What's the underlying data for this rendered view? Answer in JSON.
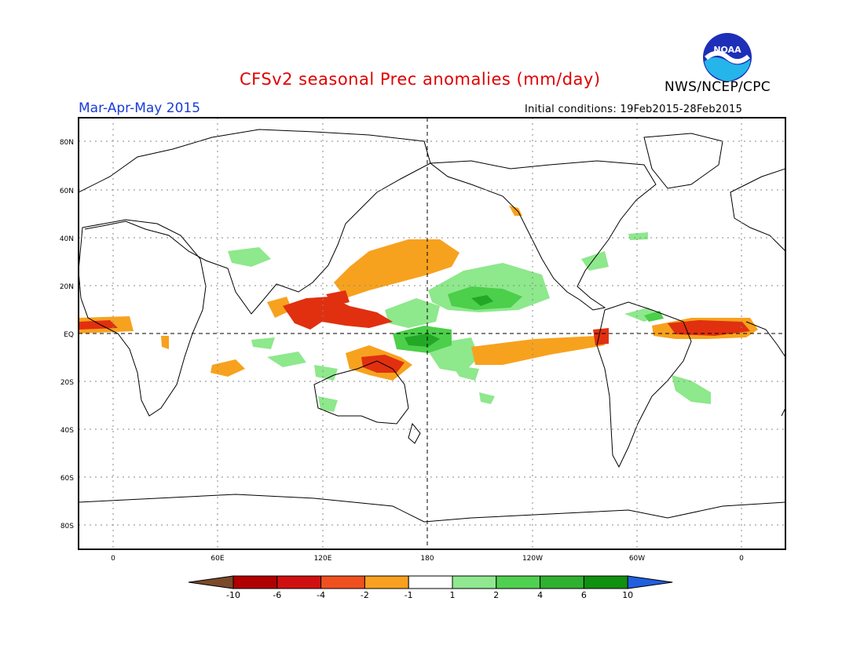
{
  "title": "CFSv2 seasonal Prec anomalies (mm/day)",
  "agency": "NWS/NCEP/CPC",
  "logo_text": "NOAA",
  "season_label": "Mar-Apr-May 2015",
  "initial_conditions": "Initial conditions: 19Feb2015-28Feb2015",
  "lat_labels": [
    "80N",
    "60N",
    "40N",
    "20N",
    "EQ",
    "20S",
    "40S",
    "60S",
    "80S"
  ],
  "lon_labels": [
    "0",
    "60E",
    "120E",
    "180",
    "120W",
    "60W",
    "0"
  ],
  "colorbar": {
    "labels": [
      "-10",
      "-6",
      "-4",
      "-2",
      "-1",
      "1",
      "2",
      "4",
      "6",
      "10"
    ],
    "colors": [
      "#7a4a2a",
      "#b00000",
      "#d01010",
      "#f05020",
      "#f8a020",
      "#ffffff",
      "#90e890",
      "#50d050",
      "#30b030",
      "#109010",
      "#2060e0"
    ]
  },
  "colors": {
    "dry_strong": "#e03010",
    "dry_moderate": "#f7a21e",
    "wet_light": "#8ee88c",
    "wet_moderate": "#4ccf4a",
    "wet_strong": "#22a826"
  }
}
